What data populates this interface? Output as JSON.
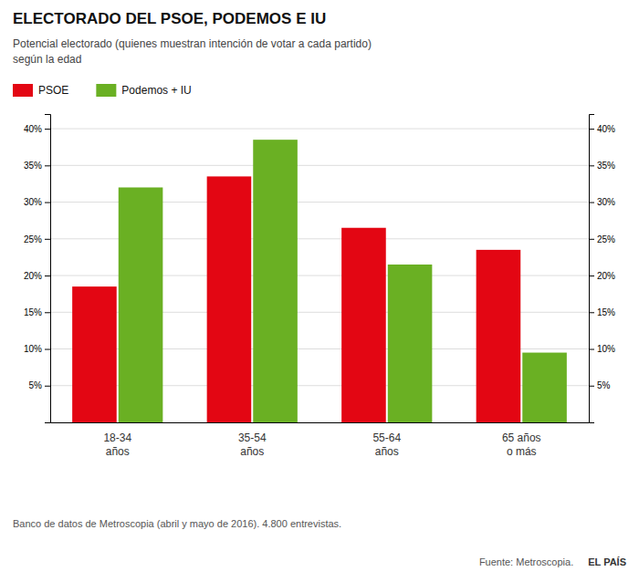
{
  "chart_data": {
    "type": "bar",
    "title": "ELECTORADO DEL PSOE, PODEMOS E IU",
    "subtitle": [
      "Potencial electorado (quienes muestran intención de votar a cada partido)",
      "según la edad"
    ],
    "categories": [
      "18-34\naños",
      "35-54\naños",
      "55-64\naños",
      "65 años\no más"
    ],
    "series": [
      {
        "name": "PSOE",
        "color": "#e30613",
        "values": [
          18.5,
          33.5,
          26.5,
          23.5
        ]
      },
      {
        "name": "Podemos + IU",
        "color": "#6ab023",
        "values": [
          32.0,
          38.5,
          21.5,
          9.5
        ]
      }
    ],
    "ylim": [
      0,
      42
    ],
    "yticks": [
      {
        "value": 5,
        "label": "5%"
      },
      {
        "value": 10,
        "label": "10%"
      },
      {
        "value": 15,
        "label": "15%"
      },
      {
        "value": 20,
        "label": "20%"
      },
      {
        "value": 25,
        "label": "25%"
      },
      {
        "value": 30,
        "label": "30%"
      },
      {
        "value": 35,
        "label": "35%"
      },
      {
        "value": 40,
        "label": "40%"
      }
    ],
    "grid": true,
    "legend": "top",
    "footnote": "Banco de datos de Metroscopia (abril y mayo de 2016). 4.800 entrevistas.",
    "source": "Fuente: Metroscopia.",
    "publisher": "EL PAÍS"
  }
}
